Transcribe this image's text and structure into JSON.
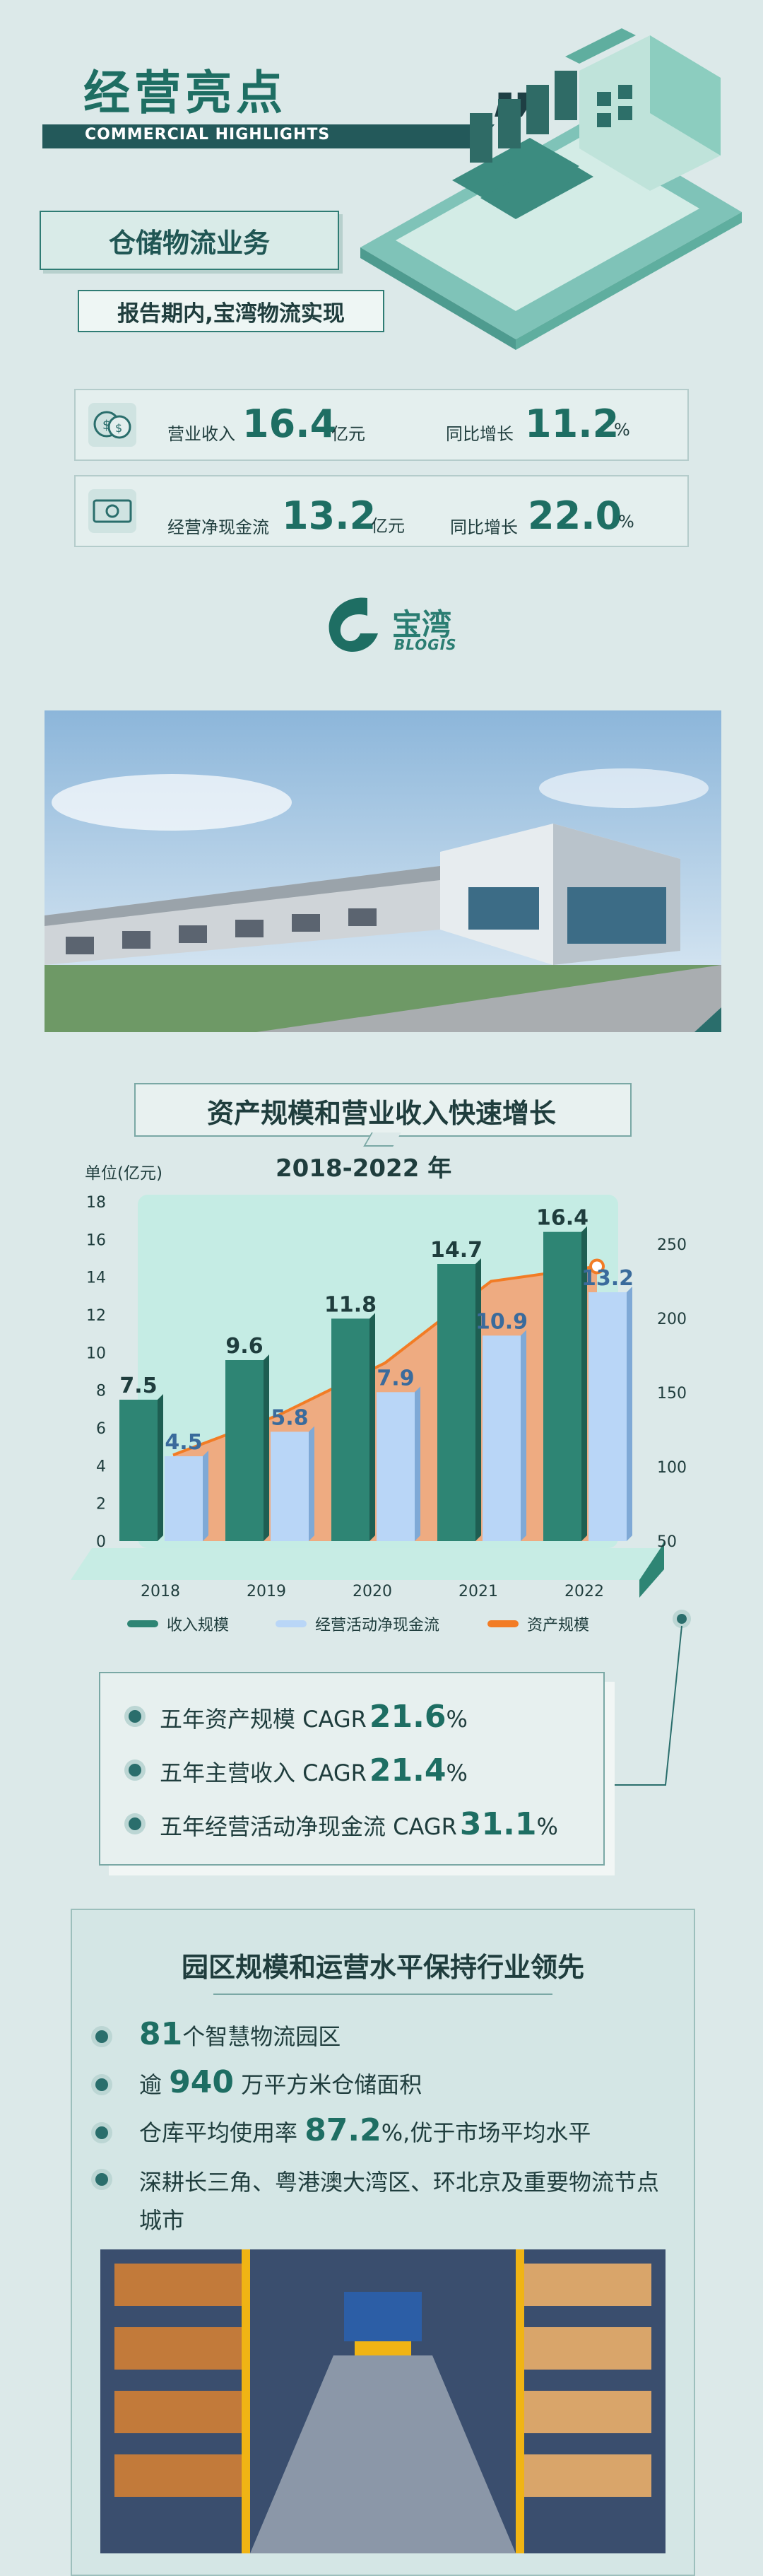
{
  "header": {
    "title": "经营亮点",
    "subtitle": "COMMERCIAL HIGHLIGHTS"
  },
  "section1": {
    "tag": "仓储物流业务",
    "intro": "报告期内,宝湾物流实现",
    "kpis": [
      {
        "label": "营业收入",
        "value": "16.4",
        "unit": "亿元",
        "yoy_label": "同比增长",
        "yoy_value": "11.2",
        "yoy_unit": "%",
        "icon": "coins-icon"
      },
      {
        "label": "经营净现金流",
        "value": "13.2",
        "unit": "亿元",
        "yoy_label": "同比增长",
        "yoy_value": "22.0",
        "yoy_unit": "%",
        "icon": "cash-icon"
      }
    ],
    "logo": {
      "cn": "宝湾",
      "en": "BLOGIS"
    }
  },
  "chart_section": {
    "title": "资产规模和营业收入快速增长",
    "period": "2018-2022 年",
    "unit_label": "单位(亿元)"
  },
  "chart_data": {
    "type": "bar",
    "categories": [
      "2018",
      "2019",
      "2020",
      "2021",
      "2022"
    ],
    "series": [
      {
        "name": "收入规模",
        "values": [
          7.5,
          9.6,
          11.8,
          14.7,
          16.4
        ],
        "color": "#2e8574",
        "axis": "left"
      },
      {
        "name": "经营活动净现金流",
        "values": [
          4.5,
          5.8,
          7.9,
          10.9,
          13.2
        ],
        "color": "#b9d6f7",
        "axis": "left"
      },
      {
        "name": "资产规模",
        "type": "line",
        "values": [
          108,
          135,
          170,
          225,
          235
        ],
        "color": "#f27c25",
        "axis": "right"
      }
    ],
    "y_left": {
      "ticks": [
        0,
        2,
        4,
        6,
        8,
        10,
        12,
        14,
        16,
        18
      ],
      "range": [
        0,
        18
      ]
    },
    "y_right": {
      "ticks": [
        50,
        100,
        150,
        200,
        250
      ],
      "range": [
        50,
        250
      ]
    },
    "legend_position": "bottom"
  },
  "cagr": [
    {
      "label": "五年资产规模 CAGR",
      "value": "21.6",
      "unit": "%"
    },
    {
      "label": "五年主营收入 CAGR",
      "value": "21.4",
      "unit": "%"
    },
    {
      "label": "五年经营活动净现金流 CAGR",
      "value": "31.1",
      "unit": "%"
    }
  ],
  "park": {
    "title": "园区规模和运营水平保持行业领先",
    "items": [
      {
        "pre": "",
        "value": "81",
        "post": "个智慧物流园区"
      },
      {
        "pre": "逾 ",
        "value": "940",
        "post": " 万平方米仓储面积"
      },
      {
        "pre": "仓库平均使用率 ",
        "value": "87.2",
        "post": "%,优于市场平均水平"
      },
      {
        "pre": "深耕长三角、粤港澳大湾区、环北京及重要物流节点",
        "value": "",
        "post": ""
      }
    ],
    "last_line_cont": "城市"
  }
}
